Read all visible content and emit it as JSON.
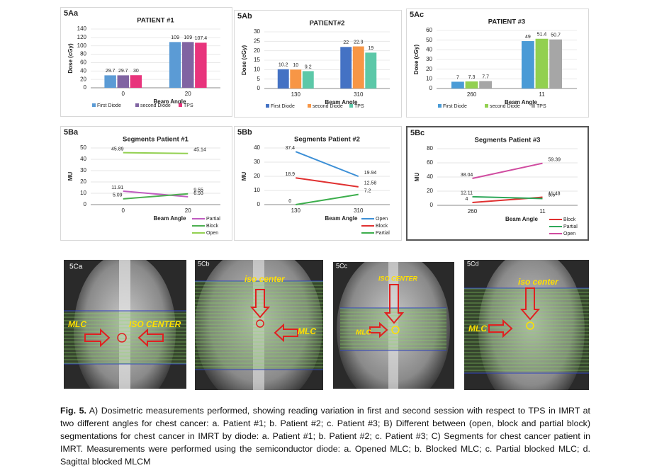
{
  "chart_data": [
    {
      "type": "bar",
      "panel": "5Aa",
      "title": "PATIENT #1",
      "y_label": "Dose (cGy)",
      "x_label": "Beam Angle",
      "categories": [
        "0",
        "20"
      ],
      "series": [
        {
          "name": "First Diode",
          "color": "#5b9bd5",
          "values": [
            29.7,
            109
          ]
        },
        {
          "name": "second Diode",
          "color": "#8064a2",
          "values": [
            29.7,
            109
          ]
        },
        {
          "name": "TPS",
          "color": "#e8347c",
          "values": [
            30,
            107.4
          ]
        }
      ],
      "ylim": [
        0,
        140
      ],
      "yticks": [
        0,
        20,
        40,
        60,
        80,
        100,
        120,
        140
      ],
      "legend": "bottom"
    },
    {
      "type": "bar",
      "panel": "5Ab",
      "title": "PATIENT#2",
      "y_label": "Dose (cGy)",
      "x_label": "Beam Angle",
      "categories": [
        "130",
        "310"
      ],
      "series": [
        {
          "name": "First Diode",
          "color": "#4472c4",
          "values": [
            10.2,
            22
          ]
        },
        {
          "name": "second Diode",
          "color": "#f79646",
          "values": [
            10,
            22.3
          ]
        },
        {
          "name": "TPS",
          "color": "#5cc8a8",
          "values": [
            9.2,
            19
          ]
        }
      ],
      "ylim": [
        0,
        30
      ],
      "yticks": [
        0,
        5,
        10,
        15,
        20,
        25,
        30
      ],
      "legend": "bottom"
    },
    {
      "type": "bar",
      "panel": "5Ac",
      "title": "PATIENT #3",
      "y_label": "Dose (cGy)",
      "x_label": "Beam Angle",
      "categories": [
        "260",
        "11"
      ],
      "series": [
        {
          "name": "First Diode",
          "color": "#4a9bd6",
          "values": [
            7,
            49
          ]
        },
        {
          "name": "second Diode",
          "color": "#92d050",
          "values": [
            7.3,
            51.4
          ]
        },
        {
          "name": "TPS",
          "color": "#a6a6a6",
          "values": [
            7.7,
            50.7
          ]
        }
      ],
      "ylim": [
        0,
        60
      ],
      "yticks": [
        0,
        10,
        20,
        30,
        40,
        50,
        60
      ],
      "legend": "bottom"
    },
    {
      "type": "line",
      "panel": "5Ba",
      "title": "Segments Patient #1",
      "y_label": "MU",
      "x_label": "Beam Angle",
      "categories": [
        "0",
        "20"
      ],
      "series": [
        {
          "name": "Partial",
          "color": "#c05cc0",
          "values": [
            11.91,
            6.93
          ]
        },
        {
          "name": "Block",
          "color": "#4caf50",
          "values": [
            5.09,
            9.55
          ]
        },
        {
          "name": "Open",
          "color": "#92d050",
          "values": [
            45.89,
            45.14
          ]
        }
      ],
      "ylim": [
        0,
        50
      ],
      "yticks": [
        0,
        10,
        20,
        30,
        40,
        50
      ],
      "legend": "bottom-right"
    },
    {
      "type": "line",
      "panel": "5Bb",
      "title": "Segments Patient #2",
      "y_label": "MU",
      "x_label": "Beam Angle",
      "categories": [
        "130",
        "310"
      ],
      "series": [
        {
          "name": "Open",
          "color": "#3c8fd6",
          "values": [
            37.4,
            19.94
          ]
        },
        {
          "name": "Block",
          "color": "#e03030",
          "values": [
            18.9,
            12.58
          ]
        },
        {
          "name": "Partial",
          "color": "#3cae4c",
          "values": [
            0,
            7.2
          ]
        }
      ],
      "ylim": [
        0,
        40
      ],
      "yticks": [
        0,
        10,
        20,
        30,
        40
      ],
      "legend": "bottom-right"
    },
    {
      "type": "line",
      "panel": "5Bc",
      "title": "Segments Patient #3",
      "y_label": "MU",
      "x_label": "Beam Angle",
      "categories": [
        "260",
        "11"
      ],
      "series": [
        {
          "name": "Block",
          "color": "#e03030",
          "values": [
            4,
            11.48
          ]
        },
        {
          "name": "Partial",
          "color": "#2ea85a",
          "values": [
            12.11,
            9.5
          ]
        },
        {
          "name": "Open",
          "color": "#d04ca0",
          "values": [
            38.04,
            59.39
          ]
        }
      ],
      "ylim": [
        0,
        80
      ],
      "yticks": [
        0,
        20,
        40,
        60,
        80
      ],
      "legend": "bottom-right"
    }
  ],
  "image_panels": [
    {
      "label": "5Ca",
      "annotations": [
        "MLC",
        "ISO CENTER"
      ]
    },
    {
      "label": "5Cb",
      "annotations": [
        "iso center",
        "MLC"
      ]
    },
    {
      "label": "5Cc",
      "annotations": [
        "ISO CENTER",
        "MLC"
      ]
    },
    {
      "label": "5Cd",
      "annotations": [
        "iso center",
        "MLC"
      ]
    }
  ],
  "caption": {
    "label": "Fig. 5.",
    "text": "A) Dosimetric measurements performed, showing reading variation in first and second session with respect to TPS in IMRT at two different angles for chest cancer: a. Patient #1; b. Patient #2; c. Patient #3; B) Different between (open, block and partial block) segmentations for chest cancer in IMRT by diode: a. Patient #1; b. Patient #2; c. Patient #3; C) Segments for chest cancer patient in IMRT. Measurements were performed using the semiconductor diode: a. Opened MLC; b. Blocked MLC; c. Partial blocked MLC; d. Sagittal blocked MLCM"
  }
}
